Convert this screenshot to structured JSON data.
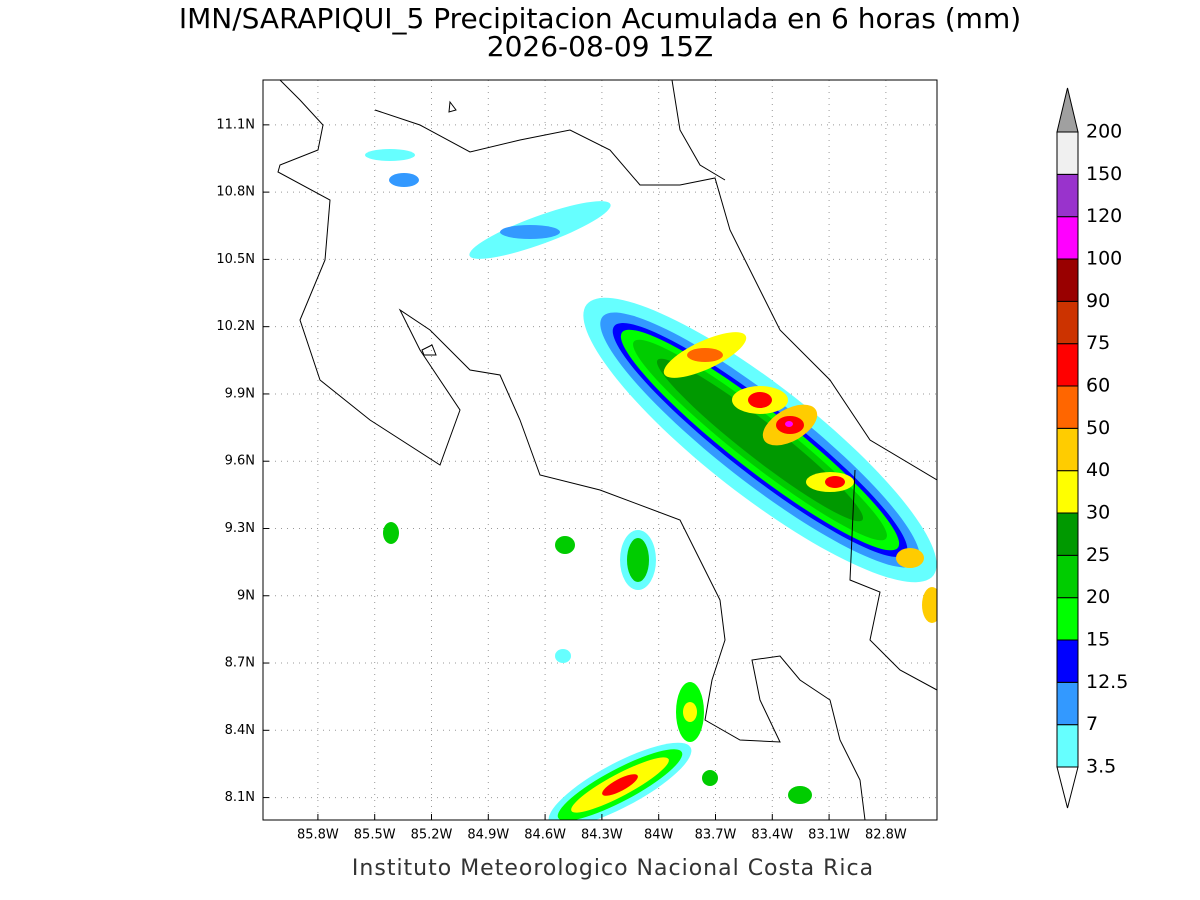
{
  "map": {
    "title": "IMN/SARAPIQUI_5 Precipitacion Acumulada en 6 horas (mm)",
    "subtitle": "2026-08-09 15Z",
    "footer": "Instituto Meteorologico Nacional Costa Rica",
    "xlim": [
      -86.09,
      -82.53
    ],
    "ylim": [
      8.0,
      11.3
    ],
    "xticks": [
      {
        "value": -85.8,
        "label": "85.8W"
      },
      {
        "value": -85.5,
        "label": "85.5W"
      },
      {
        "value": -85.2,
        "label": "85.2W"
      },
      {
        "value": -84.9,
        "label": "84.9W"
      },
      {
        "value": -84.6,
        "label": "84.6W"
      },
      {
        "value": -84.3,
        "label": "84.3W"
      },
      {
        "value": -84.0,
        "label": "84W"
      },
      {
        "value": -83.7,
        "label": "83.7W"
      },
      {
        "value": -83.4,
        "label": "83.4W"
      },
      {
        "value": -83.1,
        "label": "83.1W"
      },
      {
        "value": -82.8,
        "label": "82.8W"
      }
    ],
    "yticks": [
      {
        "value": 8.1,
        "label": "8.1N"
      },
      {
        "value": 8.4,
        "label": "8.4N"
      },
      {
        "value": 8.7,
        "label": "8.7N"
      },
      {
        "value": 9.0,
        "label": "9N"
      },
      {
        "value": 9.3,
        "label": "9.3N"
      },
      {
        "value": 9.6,
        "label": "9.6N"
      },
      {
        "value": 9.9,
        "label": "9.9N"
      },
      {
        "value": 10.2,
        "label": "10.2N"
      },
      {
        "value": 10.5,
        "label": "10.5N"
      },
      {
        "value": 10.8,
        "label": "10.8N"
      },
      {
        "value": 11.1,
        "label": "11.1N"
      }
    ],
    "grid": true,
    "colorbar": {
      "levels": [
        3.5,
        7,
        12.5,
        15,
        20,
        25,
        30,
        40,
        50,
        60,
        75,
        90,
        100,
        120,
        150,
        200
      ],
      "colors": [
        "#ffffff",
        "#66ffff",
        "#3399ff",
        "#0000ff",
        "#00ff00",
        "#00cc00",
        "#009900",
        "#ffff00",
        "#ffcc00",
        "#ff6600",
        "#ff0000",
        "#cc3300",
        "#990000",
        "#ff00ff",
        "#9933cc",
        "#f0f0f0",
        "#a0a0a0"
      ]
    }
  }
}
